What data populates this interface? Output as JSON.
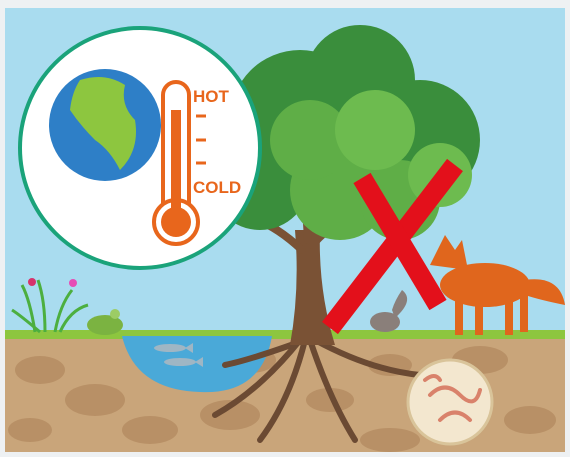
{
  "labels": {
    "hot": "HOT",
    "cold": "COLD"
  }
}
